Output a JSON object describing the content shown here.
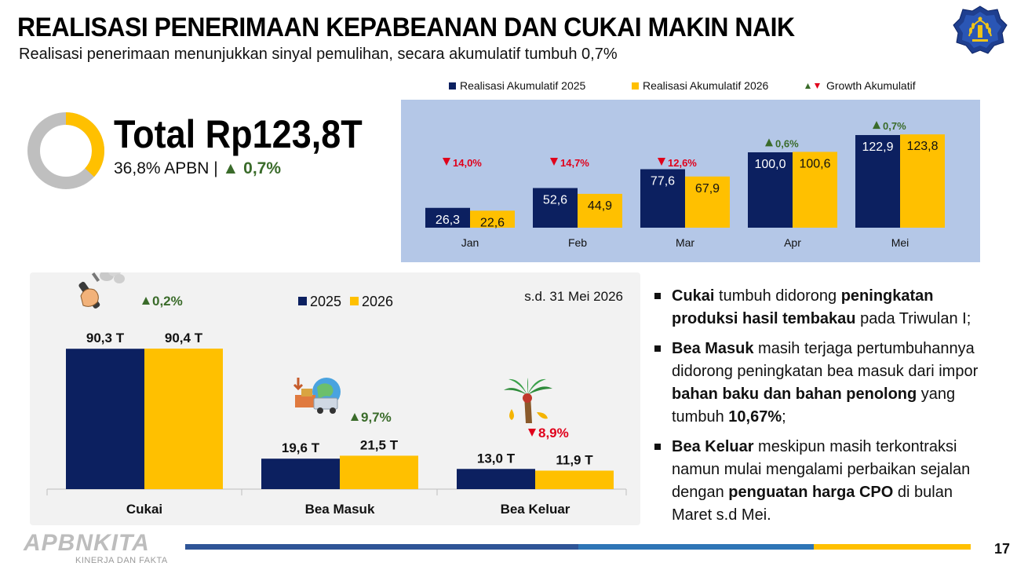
{
  "header": {
    "title": "REALISASI PENERIMAAN KEPABEANAN DAN CUKAI MAKIN NAIK",
    "subtitle": "Realisasi penerimaan menunjukkan sinyal pemulihan, secara akumulatif tumbuh 0,7%"
  },
  "summary": {
    "total": "Total Rp123,8T",
    "apbn_share": "36,8% APBN | ",
    "growth": "▲ 0,7%",
    "donut_fraction": 0.368
  },
  "colors": {
    "navy": "#0c2060",
    "gold": "#ffc000",
    "red": "#e0001b",
    "green": "#3a6b2a",
    "panel_blue": "#b4c7e7",
    "panel_grey": "#f2f2f2",
    "donut_grey": "#bfbfbf"
  },
  "top_legend": {
    "s2025": "Realisasi Akumulatif 2025",
    "s2026": "Realisasi Akumulatif 2026",
    "growth_label": "Growth Akumulatif"
  },
  "chart_data": [
    {
      "type": "bar",
      "categories": [
        "Jan",
        "Feb",
        "Mar",
        "Apr",
        "Mei"
      ],
      "series": [
        {
          "name": "Realisasi Akumulatif 2025",
          "values": [
            26.3,
            52.6,
            77.6,
            100.0,
            122.9
          ],
          "labels": [
            "26,3",
            "52,6",
            "77,6",
            "100,0",
            "122,9"
          ]
        },
        {
          "name": "Realisasi Akumulatif 2026",
          "values": [
            22.6,
            44.9,
            67.9,
            100.6,
            123.8
          ],
          "labels": [
            "22,6",
            "44,9",
            "67,9",
            "100,6",
            "123,8"
          ]
        }
      ],
      "growth": [
        {
          "dir": "down",
          "label": "14,0%"
        },
        {
          "dir": "down",
          "label": "14,7%"
        },
        {
          "dir": "down",
          "label": "12,6%"
        },
        {
          "dir": "up",
          "label": "0,6%"
        },
        {
          "dir": "up",
          "label": "0,7%"
        }
      ],
      "ylim": [
        0,
        130
      ],
      "legend": "top"
    },
    {
      "type": "bar",
      "categories": [
        "Cukai",
        "Bea Masuk",
        "Bea Keluar"
      ],
      "series": [
        {
          "name": "2025",
          "values": [
            90.3,
            19.6,
            13.0
          ],
          "labels": [
            "90,3 T",
            "19,6 T",
            "13,0 T"
          ]
        },
        {
          "name": "2026",
          "values": [
            90.4,
            21.5,
            11.9
          ],
          "labels": [
            "90,4 T",
            "21,5 T",
            "11,9 T"
          ]
        }
      ],
      "growth": [
        {
          "dir": "up",
          "label": "0,2%"
        },
        {
          "dir": "up",
          "label": "9,7%"
        },
        {
          "dir": "down",
          "label": "8,9%"
        }
      ],
      "icons": [
        "vape-icon",
        "import-cargo-icon",
        "palm-oil-icon"
      ],
      "note": "s.d. 31 Mei 2026",
      "ylim": [
        0,
        100
      ],
      "legend": "top"
    }
  ],
  "bullets": [
    [
      {
        "t": "Cukai",
        "b": true
      },
      {
        "t": " tumbuh didorong ",
        "b": false
      },
      {
        "t": "peningkatan produksi hasil tembakau",
        "b": true
      },
      {
        "t": " pada Triwulan I;",
        "b": false
      }
    ],
    [
      {
        "t": "Bea Masuk",
        "b": true
      },
      {
        "t": " masih terjaga pertumbuhannya didorong peningkatan bea masuk dari impor ",
        "b": false
      },
      {
        "t": "bahan baku dan bahan penolong",
        "b": true
      },
      {
        "t": " yang tumbuh ",
        "b": false
      },
      {
        "t": "10,67%",
        "b": true
      },
      {
        "t": ";",
        "b": false
      }
    ],
    [
      {
        "t": "Bea Keluar",
        "b": true
      },
      {
        "t": " meskipun masih terkontraksi namun mulai mengalami perbaikan sejalan dengan ",
        "b": false
      },
      {
        "t": "penguatan harga CPO",
        "b": true
      },
      {
        "t": " di bulan Maret s.d Mei.",
        "b": false
      }
    ]
  ],
  "footer": {
    "brand": "APBNKITA",
    "tagline": "KINERJA DAN FAKTA",
    "page": "17",
    "bar_colors": [
      "#2f5597",
      "#2e75b6",
      "#ffc000"
    ],
    "bar_fractions": [
      0.5,
      0.3,
      0.2
    ]
  }
}
